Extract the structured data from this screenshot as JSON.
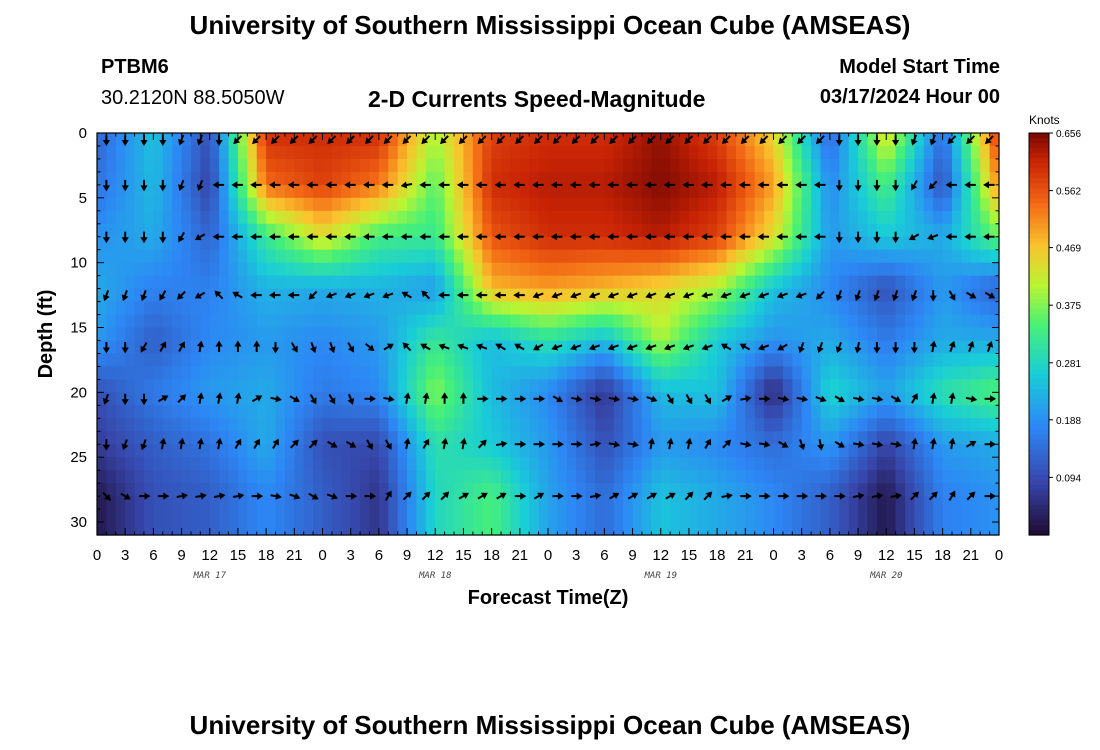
{
  "header": {
    "title": "University of Southern Mississippi Ocean Cube (AMSEAS)",
    "footer_title": "University of Southern Mississippi Ocean Cube (AMSEAS)",
    "station": "PTBM6",
    "location": "30.2120N  88.5050W",
    "plot_name": "2-D Currents Speed-Magnitude",
    "start_label": "Model Start Time",
    "start_value": "03/17/2024 Hour 00"
  },
  "chart_data": {
    "type": "heatmap",
    "title": "2-D Currents Speed-Magnitude",
    "xlabel": "Forecast Time(Z)",
    "ylabel": "Depth (ft)",
    "x_range_hours": [
      0,
      96
    ],
    "ylim": [
      31,
      0
    ],
    "x_tick_labels": [
      "0",
      "3",
      "6",
      "9",
      "12",
      "15",
      "18",
      "21",
      "0",
      "3",
      "6",
      "9",
      "12",
      "15",
      "18",
      "21",
      "0",
      "3",
      "6",
      "9",
      "12",
      "15",
      "18",
      "21",
      "0",
      "3",
      "6",
      "9",
      "12",
      "15",
      "18",
      "21",
      "0"
    ],
    "y_tick_labels": [
      "0",
      "5",
      "10",
      "15",
      "20",
      "25",
      "30"
    ],
    "y_tick_values": [
      0,
      5,
      10,
      15,
      20,
      25,
      30
    ],
    "date_labels": [
      {
        "label": "MAR 17",
        "hour": 12
      },
      {
        "label": "MAR 18",
        "hour": 36
      },
      {
        "label": "MAR 19",
        "hour": 60
      },
      {
        "label": "MAR 20",
        "hour": 84
      }
    ],
    "colorbar": {
      "unit": "Knots",
      "min": 0.0,
      "max": 0.656,
      "tick_labels": [
        "0.656",
        "0.562",
        "0.469",
        "0.375",
        "0.281",
        "0.188",
        "0.094"
      ],
      "tick_values": [
        0.656,
        0.562,
        0.469,
        0.375,
        0.281,
        0.188,
        0.094
      ]
    },
    "depth_levels_ft": [
      0,
      4,
      8,
      12,
      16,
      20,
      24,
      28
    ],
    "speed_hours": [
      0,
      6,
      12,
      18,
      24,
      30,
      36,
      42,
      48,
      54,
      60,
      66,
      72,
      78,
      84,
      90,
      96
    ],
    "speed_knots": [
      [
        0.13,
        0.25,
        0.1,
        0.6,
        0.6,
        0.6,
        0.4,
        0.58,
        0.6,
        0.6,
        0.64,
        0.58,
        0.45,
        0.13,
        0.45,
        0.14,
        0.6
      ],
      [
        0.15,
        0.24,
        0.08,
        0.54,
        0.58,
        0.53,
        0.35,
        0.6,
        0.62,
        0.62,
        0.65,
        0.62,
        0.5,
        0.18,
        0.34,
        0.1,
        0.52
      ],
      [
        0.19,
        0.22,
        0.13,
        0.32,
        0.44,
        0.33,
        0.32,
        0.56,
        0.6,
        0.6,
        0.62,
        0.58,
        0.44,
        0.2,
        0.26,
        0.22,
        0.36
      ],
      [
        0.22,
        0.17,
        0.17,
        0.23,
        0.22,
        0.23,
        0.2,
        0.48,
        0.5,
        0.48,
        0.45,
        0.4,
        0.25,
        0.18,
        0.1,
        0.2,
        0.12
      ],
      [
        0.2,
        0.12,
        0.18,
        0.2,
        0.18,
        0.2,
        0.32,
        0.24,
        0.3,
        0.24,
        0.4,
        0.26,
        0.19,
        0.22,
        0.16,
        0.22,
        0.22
      ],
      [
        0.1,
        0.16,
        0.2,
        0.22,
        0.16,
        0.18,
        0.38,
        0.24,
        0.18,
        0.06,
        0.24,
        0.25,
        0.04,
        0.28,
        0.21,
        0.3,
        0.35
      ],
      [
        0.07,
        0.12,
        0.15,
        0.22,
        0.1,
        0.09,
        0.3,
        0.26,
        0.2,
        0.1,
        0.2,
        0.18,
        0.14,
        0.2,
        0.08,
        0.2,
        0.22
      ],
      [
        0.02,
        0.1,
        0.12,
        0.18,
        0.12,
        0.06,
        0.28,
        0.34,
        0.21,
        0.14,
        0.25,
        0.22,
        0.18,
        0.12,
        0.02,
        0.17,
        0.19
      ]
    ],
    "vector_hours": [
      1,
      3,
      5,
      7,
      9,
      11,
      13,
      15,
      17,
      19,
      21,
      23,
      25,
      27,
      29,
      31,
      33,
      35,
      37,
      39,
      41,
      43,
      45,
      47,
      49,
      51,
      53,
      55,
      57,
      59,
      61,
      63,
      65,
      67,
      69,
      71,
      73,
      75,
      77,
      79,
      81,
      83,
      85,
      87,
      89,
      91,
      93,
      95
    ],
    "vector_depths_ft": [
      0.5,
      4,
      8,
      12.5,
      16.5,
      20.5,
      24,
      28
    ],
    "vector_direction_deg": [
      [
        180,
        180,
        180,
        180,
        200,
        200,
        180,
        225,
        225,
        225,
        225,
        225,
        225,
        225,
        225,
        225,
        225,
        225,
        225,
        225,
        225,
        225,
        225,
        225,
        225,
        225,
        225,
        225,
        225,
        225,
        225,
        225,
        225,
        225,
        225,
        225,
        225,
        225,
        225,
        180,
        180,
        180,
        180,
        200,
        200,
        225,
        225,
        225
      ],
      [
        180,
        180,
        180,
        180,
        200,
        200,
        270,
        270,
        270,
        270,
        270,
        270,
        270,
        270,
        270,
        270,
        260,
        270,
        270,
        270,
        270,
        270,
        270,
        270,
        270,
        270,
        270,
        270,
        270,
        270,
        270,
        270,
        270,
        270,
        270,
        270,
        270,
        270,
        270,
        180,
        180,
        180,
        180,
        210,
        225,
        270,
        270,
        270
      ],
      [
        180,
        180,
        180,
        180,
        210,
        240,
        270,
        270,
        270,
        270,
        270,
        270,
        270,
        270,
        270,
        270,
        270,
        270,
        270,
        270,
        270,
        270,
        270,
        270,
        270,
        270,
        270,
        270,
        270,
        270,
        270,
        270,
        270,
        270,
        270,
        270,
        270,
        270,
        270,
        180,
        180,
        180,
        180,
        240,
        250,
        270,
        270,
        270
      ],
      [
        200,
        200,
        200,
        210,
        225,
        240,
        315,
        300,
        270,
        270,
        270,
        225,
        250,
        250,
        250,
        250,
        300,
        315,
        270,
        270,
        270,
        270,
        270,
        250,
        250,
        250,
        250,
        250,
        250,
        250,
        250,
        250,
        260,
        250,
        250,
        250,
        250,
        250,
        225,
        200,
        200,
        200,
        200,
        200,
        180,
        150,
        120,
        120
      ],
      [
        180,
        180,
        210,
        30,
        30,
        10,
        0,
        0,
        0,
        180,
        150,
        160,
        160,
        150,
        130,
        60,
        315,
        300,
        290,
        290,
        290,
        300,
        300,
        240,
        250,
        250,
        250,
        250,
        250,
        250,
        250,
        250,
        250,
        300,
        300,
        250,
        240,
        200,
        200,
        200,
        190,
        180,
        180,
        180,
        10,
        20,
        20,
        20
      ],
      [
        200,
        180,
        180,
        60,
        45,
        10,
        10,
        10,
        60,
        100,
        120,
        150,
        150,
        160,
        90,
        100,
        10,
        10,
        0,
        0,
        90,
        90,
        90,
        90,
        120,
        100,
        100,
        100,
        100,
        110,
        150,
        150,
        150,
        60,
        80,
        90,
        100,
        100,
        110,
        120,
        100,
        100,
        120,
        30,
        10,
        10,
        100,
        90
      ],
      [
        180,
        200,
        200,
        10,
        10,
        10,
        10,
        30,
        30,
        30,
        45,
        45,
        120,
        120,
        150,
        150,
        10,
        30,
        10,
        10,
        45,
        80,
        90,
        90,
        90,
        90,
        80,
        100,
        100,
        10,
        10,
        10,
        30,
        45,
        100,
        100,
        120,
        160,
        170,
        120,
        100,
        100,
        100,
        10,
        10,
        10,
        60,
        90
      ],
      [
        135,
        120,
        90,
        90,
        80,
        80,
        80,
        80,
        90,
        100,
        110,
        120,
        110,
        90,
        90,
        30,
        45,
        45,
        45,
        60,
        60,
        60,
        90,
        60,
        90,
        90,
        80,
        60,
        60,
        60,
        60,
        45,
        45,
        80,
        90,
        90,
        90,
        90,
        90,
        90,
        80,
        80,
        80,
        45,
        45,
        30,
        45,
        90
      ]
    ]
  }
}
